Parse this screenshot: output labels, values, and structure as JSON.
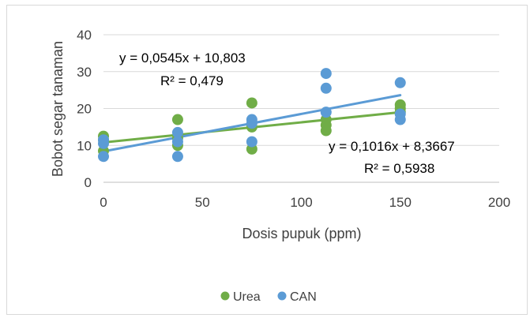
{
  "chart_data": {
    "type": "scatter",
    "title": "",
    "xlabel": "Dosis pupuk (ppm)",
    "ylabel": "Bobot segar tanaman",
    "xlim": [
      0,
      200
    ],
    "ylim": [
      0,
      40
    ],
    "x_ticks": [
      "0",
      "50",
      "100",
      "150",
      "200"
    ],
    "y_ticks": [
      "0",
      "10",
      "20",
      "30",
      "40"
    ],
    "grid": "horizontal",
    "legend_position": "bottom",
    "series": [
      {
        "name": "Urea",
        "color": "#70ad47",
        "points": [
          [
            0,
            12.5
          ],
          [
            0,
            11.5
          ],
          [
            0,
            8.5
          ],
          [
            37.5,
            17.0
          ],
          [
            37.5,
            12.0
          ],
          [
            37.5,
            10.0
          ],
          [
            75,
            21.5
          ],
          [
            75,
            15.0
          ],
          [
            75,
            9.0
          ],
          [
            112.5,
            17.0
          ],
          [
            112.5,
            15.5
          ],
          [
            112.5,
            14.0
          ],
          [
            150,
            21.0
          ],
          [
            150,
            20.0
          ],
          [
            150,
            19.0
          ]
        ],
        "trendline": {
          "slope": 0.0545,
          "intercept": 10.803,
          "equation": "y = 0,0545x + 10,803",
          "r2": "R² = 0,479"
        }
      },
      {
        "name": "CAN",
        "color": "#5b9bd5",
        "points": [
          [
            0,
            11.5
          ],
          [
            0,
            10.5
          ],
          [
            0,
            7.0
          ],
          [
            37.5,
            13.5
          ],
          [
            37.5,
            11.0
          ],
          [
            37.5,
            7.0
          ],
          [
            75,
            17.0
          ],
          [
            75,
            16.0
          ],
          [
            75,
            11.0
          ],
          [
            112.5,
            29.5
          ],
          [
            112.5,
            25.5
          ],
          [
            112.5,
            19.0
          ],
          [
            150,
            27.0
          ],
          [
            150,
            18.5
          ],
          [
            150,
            17.0
          ]
        ],
        "trendline": {
          "slope": 0.1016,
          "intercept": 8.3667,
          "equation": "y = 0,1016x + 8,3667",
          "r2": "R² = 0,5938"
        }
      }
    ]
  }
}
